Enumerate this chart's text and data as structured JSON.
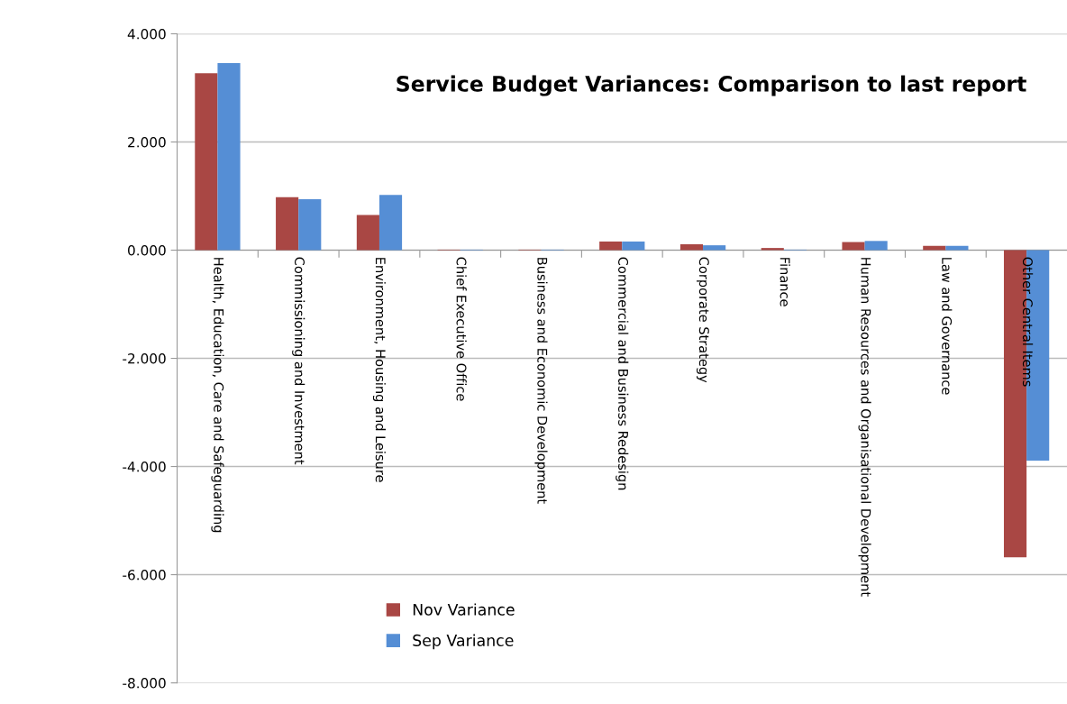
{
  "chart_data": {
    "type": "bar",
    "title": "Service Budget Variances: Comparison to last report",
    "categories": [
      "Health, Education, Care and Safeguarding",
      "Commissioning and Investment",
      "Environment, Housing and Leisure",
      "Chief Executive Office",
      "Business and Economic Development",
      "Commercial and Business Redesign",
      "Corporate Strategy",
      "Finance",
      "Human Resources and Organisational Development",
      "Law and Governance",
      "Other Central Items"
    ],
    "series": [
      {
        "name": "Nov Variance",
        "color": "#a94744",
        "values": [
          3.27,
          0.98,
          0.65,
          0.01,
          0.01,
          0.16,
          0.11,
          0.04,
          0.15,
          0.08,
          -5.68
        ]
      },
      {
        "name": "Sep Variance",
        "color": "#558ed5",
        "values": [
          3.46,
          0.94,
          1.02,
          0.01,
          0.01,
          0.16,
          0.09,
          0.01,
          0.17,
          0.08,
          -3.89
        ]
      }
    ],
    "ylim": [
      -8,
      4
    ],
    "yticks": [
      {
        "value": -8,
        "label": "-8.000"
      },
      {
        "value": -6,
        "label": "-6.000"
      },
      {
        "value": -4,
        "label": "-4.000"
      },
      {
        "value": -2,
        "label": "-2.000"
      },
      {
        "value": 0,
        "label": "0.000"
      },
      {
        "value": 2,
        "label": "2.000"
      },
      {
        "value": 4,
        "label": "4.000"
      }
    ],
    "grid": "y",
    "legend": "bottom left"
  }
}
